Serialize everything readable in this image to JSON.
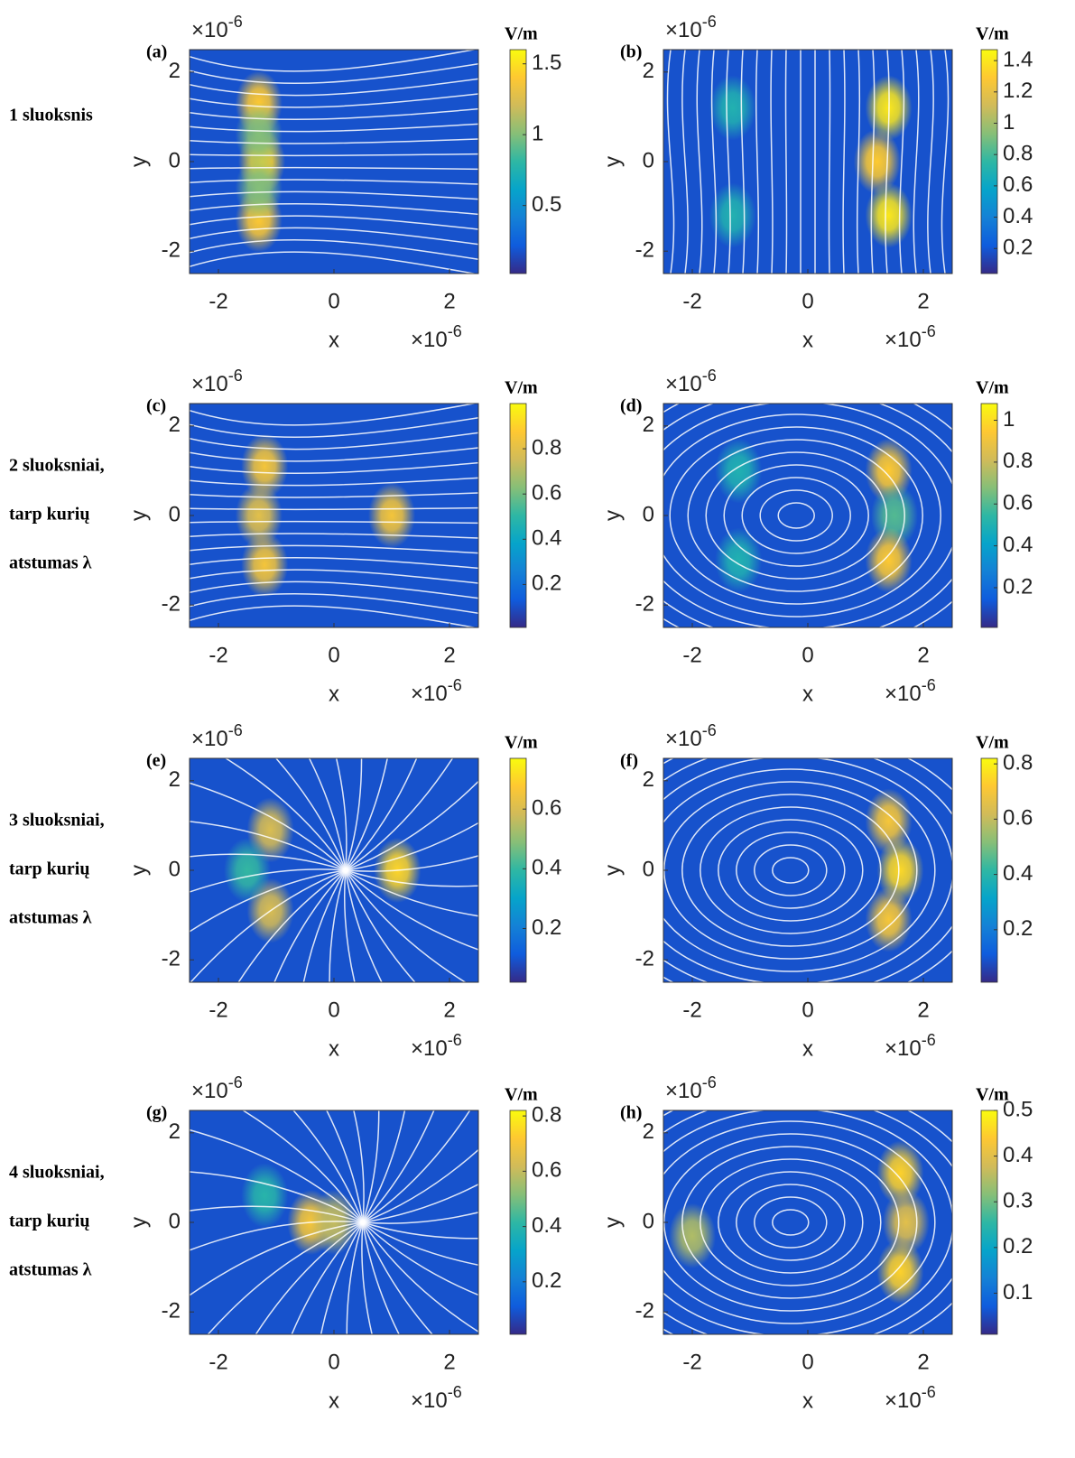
{
  "row_labels": [
    [
      "1 sluoksnis"
    ],
    [
      "2 sluoksniai,",
      "tarp kurių",
      "atstumas λ"
    ],
    [
      "3 sluoksniai,",
      "tarp kurių",
      "atstumas λ"
    ],
    [
      "4 sluoksniai,",
      "tarp kurių",
      "atstumas λ"
    ]
  ],
  "chart_data": [
    {
      "type": "heatmap",
      "panel": "(a)",
      "xlabel": "x",
      "ylabel": "y",
      "xlim": [
        -2.5,
        2.5
      ],
      "ylim": [
        -2.5,
        2.5
      ],
      "xticks": [
        -2,
        0,
        2
      ],
      "yticks": [
        -2,
        0,
        2
      ],
      "x_exponent": {
        "base": "×10",
        "power": "-6"
      },
      "y_exponent": {
        "base": "×10",
        "power": "-6"
      },
      "colorbar": {
        "label": "V/m",
        "clim": [
          0.02,
          1.6
        ],
        "ticks": [
          0.5,
          1,
          1.5
        ]
      },
      "points": {
        "x": [
          -1.3,
          -1.25,
          -1.3,
          -1.3,
          -1.3
        ],
        "y": [
          1.3,
          0,
          -1.3,
          0.6,
          -0.6
        ],
        "values": [
          1.4,
          1.45,
          1.4,
          1.0,
          1.0
        ]
      }
    },
    {
      "type": "heatmap",
      "panel": "(b)",
      "xlabel": "x",
      "ylabel": "y",
      "xlim": [
        -2.5,
        2.5
      ],
      "ylim": [
        -2.5,
        2.5
      ],
      "xticks": [
        -2,
        0,
        2
      ],
      "yticks": [
        -2,
        0,
        2
      ],
      "x_exponent": {
        "base": "×10",
        "power": "-6"
      },
      "y_exponent": {
        "base": "×10",
        "power": "-6"
      },
      "colorbar": {
        "label": "V/m",
        "clim": [
          0.04,
          1.47
        ],
        "ticks": [
          0.2,
          0.4,
          0.6,
          0.8,
          1,
          1.2,
          1.4
        ]
      },
      "points": {
        "x": [
          1.4,
          1.2,
          1.4,
          -1.3,
          -1.3
        ],
        "y": [
          1.2,
          0,
          -1.2,
          1.2,
          -1.2
        ],
        "values": [
          1.4,
          1.3,
          1.4,
          0.7,
          0.7
        ]
      }
    },
    {
      "type": "heatmap",
      "panel": "(c)",
      "xlabel": "x",
      "ylabel": "y",
      "xlim": [
        -2.5,
        2.5
      ],
      "ylim": [
        -2.5,
        2.5
      ],
      "xticks": [
        -2,
        0,
        2
      ],
      "yticks": [
        -2,
        0,
        2
      ],
      "x_exponent": {
        "base": "×10",
        "power": "-6"
      },
      "y_exponent": {
        "base": "×10",
        "power": "-6"
      },
      "colorbar": {
        "label": "V/m",
        "clim": [
          0.01,
          1.0
        ],
        "ticks": [
          0.2,
          0.4,
          0.6,
          0.8
        ]
      },
      "points": {
        "x": [
          -1.2,
          -1.3,
          -1.2,
          1.0
        ],
        "y": [
          1.1,
          0,
          -1.1,
          0
        ],
        "values": [
          0.85,
          0.8,
          0.85,
          0.85
        ]
      }
    },
    {
      "type": "heatmap",
      "panel": "(d)",
      "xlabel": "x",
      "ylabel": "y",
      "xlim": [
        -2.5,
        2.5
      ],
      "ylim": [
        -2.5,
        2.5
      ],
      "xticks": [
        -2,
        0,
        2
      ],
      "yticks": [
        -2,
        0,
        2
      ],
      "x_exponent": {
        "base": "×10",
        "power": "-6"
      },
      "y_exponent": {
        "base": "×10",
        "power": "-6"
      },
      "colorbar": {
        "label": "V/m",
        "clim": [
          0.01,
          1.08
        ],
        "ticks": [
          0.2,
          0.4,
          0.6,
          0.8,
          1
        ]
      },
      "points": {
        "x": [
          1.4,
          1.5,
          1.4,
          -1.2,
          -1.2
        ],
        "y": [
          1.0,
          0,
          -1.0,
          1.0,
          -1.0
        ],
        "values": [
          0.95,
          0.6,
          0.95,
          0.5,
          0.5
        ]
      }
    },
    {
      "type": "heatmap",
      "panel": "(e)",
      "xlabel": "x",
      "ylabel": "y",
      "xlim": [
        -2.5,
        2.5
      ],
      "ylim": [
        -2.5,
        2.5
      ],
      "xticks": [
        -2,
        0,
        2
      ],
      "yticks": [
        -2,
        0,
        2
      ],
      "x_exponent": {
        "base": "×10",
        "power": "-6"
      },
      "y_exponent": {
        "base": "×10",
        "power": "-6"
      },
      "colorbar": {
        "label": "V/m",
        "clim": [
          0.02,
          0.77
        ],
        "ticks": [
          0.2,
          0.4,
          0.6
        ]
      },
      "points": {
        "x": [
          -1.1,
          -1.1,
          1.1,
          -1.5
        ],
        "y": [
          0.9,
          -0.9,
          0,
          0
        ],
        "values": [
          0.6,
          0.6,
          0.7,
          0.4
        ]
      }
    },
    {
      "type": "heatmap",
      "panel": "(f)",
      "xlabel": "x",
      "ylabel": "y",
      "xlim": [
        -2.5,
        2.5
      ],
      "ylim": [
        -2.5,
        2.5
      ],
      "xticks": [
        -2,
        0,
        2
      ],
      "yticks": [
        -2,
        0,
        2
      ],
      "x_exponent": {
        "base": "×10",
        "power": "-6"
      },
      "y_exponent": {
        "base": "×10",
        "power": "-6"
      },
      "colorbar": {
        "label": "V/m",
        "clim": [
          0.01,
          0.82
        ],
        "ticks": [
          0.2,
          0.4,
          0.6,
          0.8
        ]
      },
      "points": {
        "x": [
          1.4,
          1.6,
          1.4
        ],
        "y": [
          1.1,
          0,
          -1.1
        ],
        "values": [
          0.7,
          0.75,
          0.7
        ]
      }
    },
    {
      "type": "heatmap",
      "panel": "(g)",
      "xlabel": "x",
      "ylabel": "y",
      "xlim": [
        -2.5,
        2.5
      ],
      "ylim": [
        -2.5,
        2.5
      ],
      "xticks": [
        -2,
        0,
        2
      ],
      "yticks": [
        -2,
        0,
        2
      ],
      "x_exponent": {
        "base": "×10",
        "power": "-6"
      },
      "y_exponent": {
        "base": "×10",
        "power": "-6"
      },
      "colorbar": {
        "label": "V/m",
        "clim": [
          0.01,
          0.82
        ],
        "ticks": [
          0.2,
          0.4,
          0.6,
          0.8
        ]
      },
      "points": {
        "x": [
          -0.4,
          0.0,
          -1.2
        ],
        "y": [
          0,
          0,
          0.6
        ],
        "values": [
          0.7,
          0.6,
          0.4
        ]
      }
    },
    {
      "type": "heatmap",
      "panel": "(h)",
      "xlabel": "x",
      "ylabel": "y",
      "xlim": [
        -2.5,
        2.5
      ],
      "ylim": [
        -2.5,
        2.5
      ],
      "xticks": [
        -2,
        0,
        2
      ],
      "yticks": [
        -2,
        0,
        2
      ],
      "x_exponent": {
        "base": "×10",
        "power": "-6"
      },
      "y_exponent": {
        "base": "×10",
        "power": "-6"
      },
      "colorbar": {
        "label": "V/m",
        "clim": [
          0.01,
          0.5
        ],
        "ticks": [
          0.1,
          0.2,
          0.3,
          0.4,
          0.5
        ]
      },
      "points": {
        "x": [
          1.6,
          1.7,
          1.6,
          -2.0
        ],
        "y": [
          1.1,
          0,
          -1.1,
          -0.3
        ],
        "values": [
          0.45,
          0.4,
          0.45,
          0.35
        ]
      }
    }
  ]
}
